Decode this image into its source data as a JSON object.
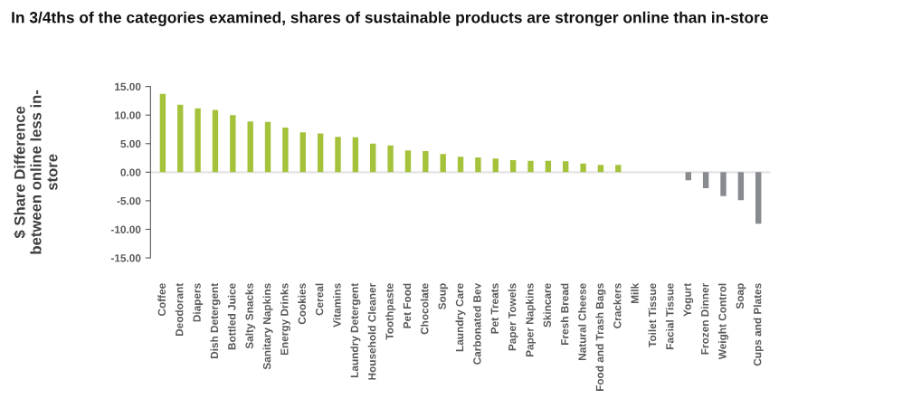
{
  "chart_data": {
    "type": "bar",
    "title": "In 3/4ths of the categories examined, shares of sustainable products are stronger online than in-store",
    "ylabel": "$ Share Difference\nbetween online less in-\nstore",
    "categories": [
      "Coffee",
      "Deodorant",
      "Diapers",
      "Dish Detergent",
      "Bottled Juice",
      "Salty Snacks",
      "Sanitary Napkins",
      "Energy Drinks",
      "Cookies",
      "Cereal",
      "Vitamins",
      "Laundry Detergent",
      "Household Cleaner",
      "Toothpaste",
      "Pet Food",
      "Chocolate",
      "Soup",
      "Laundry Care",
      "Carbonated Bev",
      "Pet Treats",
      "Paper Towels",
      "Paper Napkins",
      "Skincare",
      "Fresh Bread",
      "Natural Cheese",
      "Food and Trash Bags",
      "Crackers",
      "Milk",
      "Toilet Tissue",
      "Facial Tissue",
      "Yogurt",
      "Frozen Dinner",
      "Weight Control",
      "Soap",
      "Cups and Plates"
    ],
    "values": [
      13.7,
      11.8,
      11.2,
      10.9,
      10.0,
      8.9,
      8.8,
      7.8,
      7.0,
      6.8,
      6.2,
      6.1,
      5.0,
      4.7,
      3.8,
      3.7,
      3.2,
      2.7,
      2.6,
      2.4,
      2.1,
      2.0,
      2.0,
      1.9,
      1.5,
      1.3,
      1.3,
      0,
      0,
      0,
      -1.4,
      -2.8,
      -4.2,
      -4.9,
      -9.0
    ],
    "colors": [
      "#a4c23a",
      "#a4c23a",
      "#a4c23a",
      "#a4c23a",
      "#a4c23a",
      "#a4c23a",
      "#a4c23a",
      "#a4c23a",
      "#a4c23a",
      "#a4c23a",
      "#a4c23a",
      "#a4c23a",
      "#a4c23a",
      "#a4c23a",
      "#a4c23a",
      "#a4c23a",
      "#a4c23a",
      "#a4c23a",
      "#a4c23a",
      "#a4c23a",
      "#a4c23a",
      "#a4c23a",
      "#a4c23a",
      "#a4c23a",
      "#a4c23a",
      "#a4c23a",
      "#a4c23a",
      "#a4c23a",
      "#a4c23a",
      "#a4c23a",
      "#878a8f",
      "#878a8f",
      "#878a8f",
      "#878a8f",
      "#878a8f"
    ],
    "ylim": [
      -15,
      15
    ],
    "yticks": [
      {
        "value": -15,
        "label": "-15.00"
      },
      {
        "value": -10,
        "label": "-10.00"
      },
      {
        "value": -5,
        "label": "-5.00"
      },
      {
        "value": 0,
        "label": "0.00"
      },
      {
        "value": 5,
        "label": "5.00"
      },
      {
        "value": 10,
        "label": "10.00"
      },
      {
        "value": 15,
        "label": "15.00"
      }
    ],
    "ref_lines": [
      {
        "axis": "y",
        "value": 0,
        "color": "#e3e3e3"
      }
    ],
    "grid": false,
    "legend": false
  }
}
